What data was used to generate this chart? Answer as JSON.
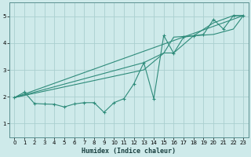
{
  "xlabel": "Humidex (Indice chaleur)",
  "bg_color": "#ceeaea",
  "grid_color": "#aacfcf",
  "line_color": "#2e8b7a",
  "xlim": [
    -0.5,
    23.5
  ],
  "ylim": [
    0.5,
    5.5
  ],
  "xticks": [
    0,
    1,
    2,
    3,
    4,
    5,
    6,
    7,
    8,
    9,
    10,
    11,
    12,
    13,
    14,
    15,
    16,
    17,
    18,
    19,
    20,
    21,
    22,
    23
  ],
  "yticks": [
    1,
    2,
    3,
    4,
    5
  ],
  "line1_x": [
    0,
    1,
    2,
    3,
    4,
    5,
    6,
    7,
    8,
    9,
    10,
    11,
    12,
    13,
    14,
    15,
    16,
    17,
    18,
    19,
    20,
    21,
    22,
    23
  ],
  "line1_y": [
    1.97,
    2.17,
    1.75,
    1.73,
    1.72,
    1.62,
    1.73,
    1.78,
    1.78,
    1.42,
    1.78,
    1.93,
    2.48,
    3.27,
    1.93,
    4.28,
    3.62,
    4.22,
    4.27,
    4.32,
    4.88,
    4.52,
    5.02,
    5.02
  ],
  "line2_x": [
    0,
    23
  ],
  "line2_y": [
    1.97,
    5.02
  ],
  "line3_x": [
    0,
    13,
    15,
    16,
    18,
    20,
    22,
    23
  ],
  "line3_y": [
    1.97,
    3.27,
    3.63,
    3.63,
    4.27,
    4.75,
    5.02,
    5.02
  ],
  "line4_x": [
    0,
    13,
    15,
    16,
    18,
    20,
    22,
    23
  ],
  "line4_y": [
    1.97,
    3.0,
    3.62,
    4.22,
    4.27,
    4.32,
    4.52,
    5.02
  ]
}
